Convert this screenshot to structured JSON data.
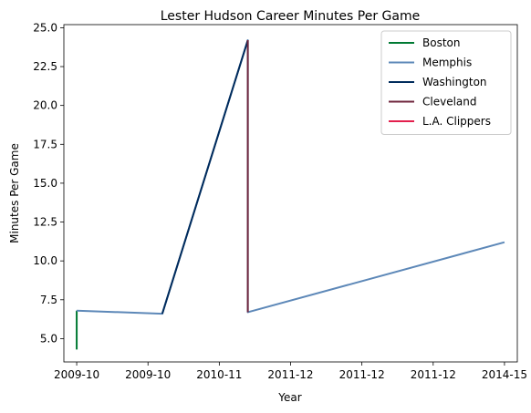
{
  "chart_data": {
    "type": "line",
    "title": "Lester Hudson Career Minutes Per Game",
    "xlabel": "Year",
    "ylabel": "Minutes Per Game",
    "x_tick_labels": [
      "2009-10",
      "2009-10",
      "2010-11",
      "2011-12",
      "2011-12",
      "2011-12",
      "2014-15"
    ],
    "ylim": [
      3.5,
      25.2
    ],
    "yticks": [
      "5.0",
      "7.5",
      "10.0",
      "12.5",
      "15.0",
      "17.5",
      "20.0",
      "22.5",
      "25.0"
    ],
    "grid": false,
    "legend_position": "top-right",
    "series": [
      {
        "name": "Boston",
        "color": "#007a33",
        "points": [
          {
            "x": "2009-10",
            "y": 6.8
          },
          {
            "x": "2009-10",
            "y": 4.3
          }
        ]
      },
      {
        "name": "Memphis",
        "color": "#5d88b8",
        "points": [
          {
            "x": "2009-10",
            "y": 6.8
          },
          {
            "x": "2010-11",
            "y": 6.6
          },
          {
            "x": "2011-12",
            "y": 24.2
          },
          {
            "x": "2011-12",
            "y": 6.7
          },
          {
            "x": "2014-15",
            "y": 11.2
          }
        ]
      },
      {
        "name": "Washington",
        "color": "#002b5c",
        "points": [
          {
            "x": "2010-11",
            "y": 6.6
          },
          {
            "x": "2011-12",
            "y": 24.2
          }
        ]
      },
      {
        "name": "Cleveland",
        "color": "#6f263d",
        "points": [
          {
            "x": "2011-12",
            "y": 24.2
          },
          {
            "x": "2011-12",
            "y": 6.7
          }
        ]
      },
      {
        "name": "L.A. Clippers",
        "color": "#e31f4d",
        "points": []
      }
    ]
  }
}
